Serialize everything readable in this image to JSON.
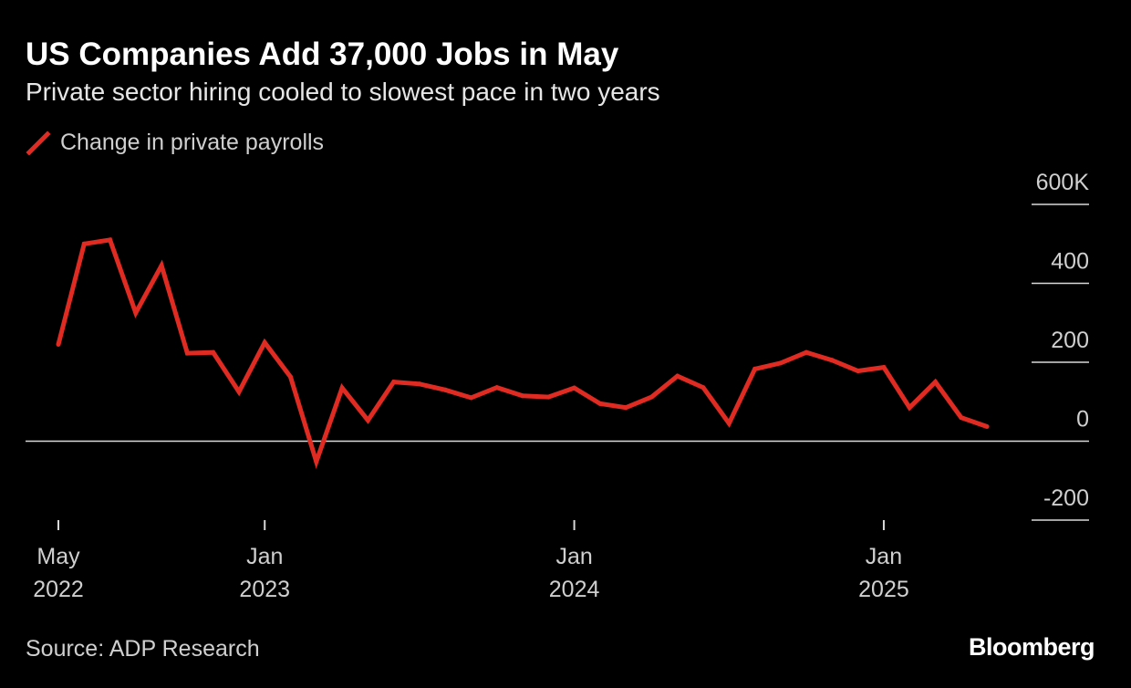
{
  "header": {
    "title": "US Companies Add 37,000 Jobs in May",
    "subtitle": "Private sector hiring cooled to slowest pace in two years"
  },
  "footer": {
    "source": "Source: ADP Research",
    "brand": "Bloomberg"
  },
  "colors": {
    "background": "#000000",
    "series": "#e02b22",
    "axis": "#d9d9d9",
    "text": "#cfcfcf"
  },
  "chart_data": {
    "type": "line",
    "title": "US Companies Add 37,000 Jobs in May",
    "subtitle": "Private sector hiring cooled to slowest pace in two years",
    "xlabel": "",
    "ylabel": "",
    "ylim": [
      -200,
      600
    ],
    "y_ticks": [
      {
        "value": 600,
        "label": "600K"
      },
      {
        "value": 400,
        "label": "400"
      },
      {
        "value": 200,
        "label": "200"
      },
      {
        "value": 0,
        "label": "0"
      },
      {
        "value": -200,
        "label": "-200"
      }
    ],
    "x_ticks": [
      {
        "date": "2022-05",
        "label_top": "May",
        "label_bottom": "2022"
      },
      {
        "date": "2023-01",
        "label_top": "Jan",
        "label_bottom": "2023"
      },
      {
        "date": "2024-01",
        "label_top": "Jan",
        "label_bottom": "2024"
      },
      {
        "date": "2025-01",
        "label_top": "Jan",
        "label_bottom": "2025"
      }
    ],
    "grid": false,
    "legend_position": "top-left",
    "x": [
      "2022-05",
      "2022-06",
      "2022-07",
      "2022-08",
      "2022-09",
      "2022-10",
      "2022-11",
      "2022-12",
      "2023-01",
      "2023-02",
      "2023-03",
      "2023-04",
      "2023-05",
      "2023-06",
      "2023-07",
      "2023-08",
      "2023-09",
      "2023-10",
      "2023-11",
      "2023-12",
      "2024-01",
      "2024-02",
      "2024-03",
      "2024-04",
      "2024-05",
      "2024-06",
      "2024-07",
      "2024-08",
      "2024-09",
      "2024-10",
      "2024-11",
      "2024-12",
      "2025-01",
      "2025-02",
      "2025-03",
      "2025-04",
      "2025-05"
    ],
    "series": [
      {
        "name": "Change in private payrolls",
        "color": "#e02b22",
        "values": [
          245,
          500,
          510,
          325,
          445,
          223,
          225,
          125,
          250,
          163,
          -52,
          135,
          53,
          150,
          145,
          130,
          110,
          136,
          115,
          112,
          135,
          95,
          85,
          112,
          165,
          136,
          45,
          183,
          198,
          225,
          205,
          178,
          187,
          85,
          150,
          60,
          37
        ]
      }
    ]
  }
}
